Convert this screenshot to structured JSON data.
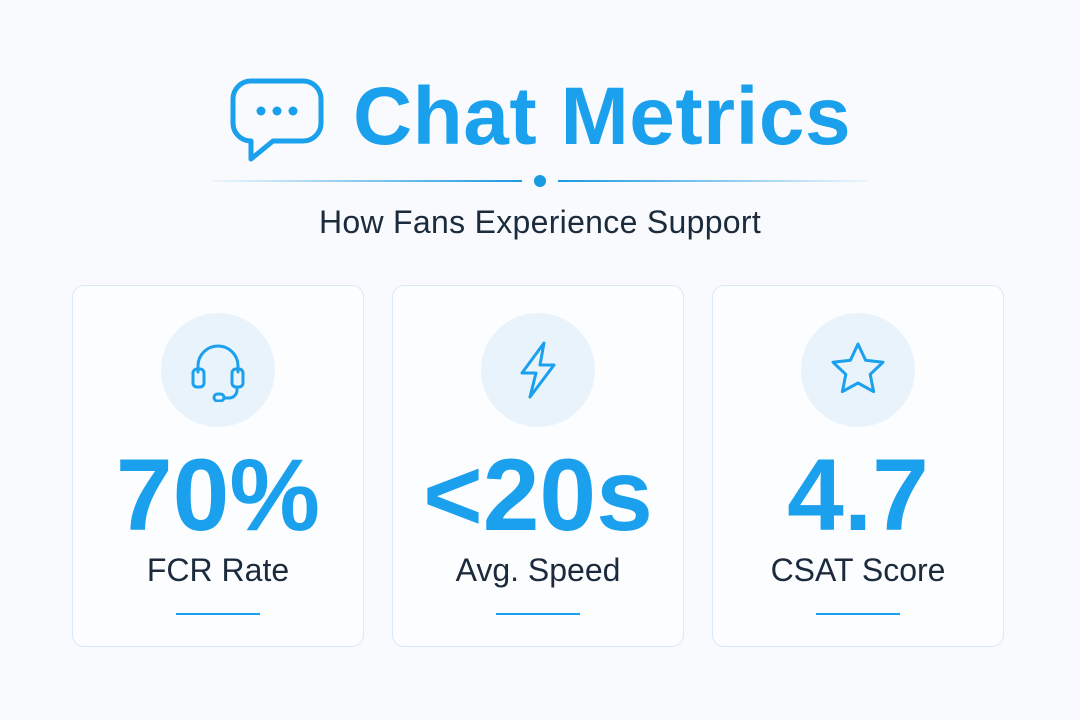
{
  "header": {
    "title": "Chat Metrics",
    "subtitle": "How Fans Experience Support",
    "icon": "chat-bubble-icon"
  },
  "colors": {
    "accent": "#1aa0ec",
    "text": "#1c2b3c",
    "background": "#f8fafd",
    "card_border": "#d9e9f7",
    "icon_circle": "#e8f3fc"
  },
  "cards": [
    {
      "icon": "headset-icon",
      "value": "70%",
      "label": "FCR Rate"
    },
    {
      "icon": "lightning-icon",
      "value": "<20s",
      "label": "Avg. Speed"
    },
    {
      "icon": "star-icon",
      "value": "4.7",
      "label": "CSAT Score"
    }
  ]
}
